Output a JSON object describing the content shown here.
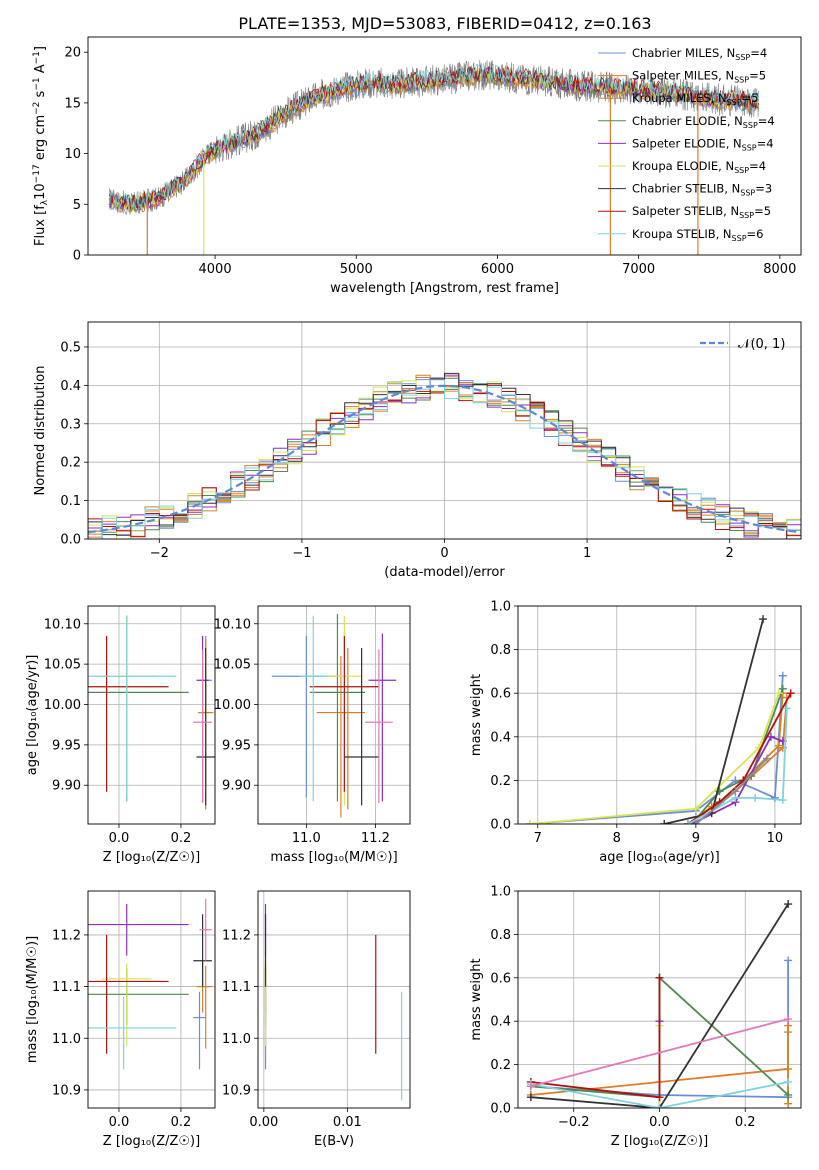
{
  "title": "PLATE=1353, MJD=53083, FIBERID=0412, z=0.163",
  "colors": {
    "chabrier_miles": "#6b8fd6",
    "salpeter_miles": "#e07b2c",
    "kroupa_miles": "#c9872a",
    "chabrier_elodie": "#4f8a4f",
    "salpeter_elodie": "#8e2fbf",
    "kroupa_elodie": "#d8e356",
    "chabrier_stelib": "#333333",
    "salpeter_stelib": "#b01010",
    "kroupa_stelib": "#7fd3de",
    "pink": "#e07ab8",
    "gray": "#8c8c8c",
    "gaussian": "#5b8bd6"
  },
  "chart_data": [
    {
      "id": "spectrum",
      "type": "line",
      "xlabel": "wavelength [Angstrom, rest frame]",
      "ylabel": "Flux [f$_\\lambda$10$^{-17}$ erg cm$^{-2}$ s$^{-1}$ A$^{-1}$]",
      "ylabel_parts": [
        "Flux [f",
        "λ",
        "10",
        "−17",
        " erg cm",
        "−2",
        " s",
        "−1",
        " A",
        "−1",
        "]"
      ],
      "xlim": [
        3100,
        8150
      ],
      "ylim": [
        0,
        21.5
      ],
      "xticks": [
        4000,
        5000,
        6000,
        7000,
        8000
      ],
      "yticks": [
        0,
        5,
        10,
        15,
        20
      ],
      "grid": false,
      "legend_position": "top-right",
      "legend": [
        {
          "label": "Chabrier MILES, N",
          "sub": "SSP",
          "val": "=4",
          "color_key": "chabrier_miles"
        },
        {
          "label": "Salpeter MILES, N",
          "sub": "SSP",
          "val": "=5",
          "color_key": "salpeter_miles"
        },
        {
          "label": "Kroupa MILES, N",
          "sub": "SSP",
          "val": "=5",
          "color_key": "kroupa_miles"
        },
        {
          "label": "Chabrier ELODIE, N",
          "sub": "SSP",
          "val": "=4",
          "color_key": "chabrier_elodie"
        },
        {
          "label": "Salpeter ELODIE, N",
          "sub": "SSP",
          "val": "=4",
          "color_key": "salpeter_elodie"
        },
        {
          "label": "Kroupa ELODIE, N",
          "sub": "SSP",
          "val": "=4",
          "color_key": "kroupa_elodie"
        },
        {
          "label": "Chabrier STELIB, N",
          "sub": "SSP",
          "val": "=3",
          "color_key": "chabrier_stelib"
        },
        {
          "label": "Salpeter STELIB, N",
          "sub": "SSP",
          "val": "=5",
          "color_key": "salpeter_stelib"
        },
        {
          "label": "Kroupa STELIB, N",
          "sub": "SSP",
          "val": "=6",
          "color_key": "kroupa_stelib"
        }
      ],
      "continuum": {
        "x": [
          3250,
          3400,
          3600,
          3800,
          3950,
          4100,
          4300,
          4500,
          4700,
          4900,
          5100,
          5300,
          5500,
          5700,
          5900,
          6100,
          6300,
          6500,
          6700,
          6900,
          7100,
          7300,
          7500,
          7700,
          7850
        ],
        "y": [
          5.5,
          5.0,
          5.6,
          7.5,
          10.0,
          11.0,
          12.0,
          14.0,
          15.5,
          16.5,
          17.0,
          16.8,
          17.2,
          17.4,
          17.8,
          17.5,
          17.2,
          16.8,
          16.6,
          16.4,
          16.2,
          15.9,
          15.4,
          15.2,
          15.0
        ]
      }
    },
    {
      "id": "residuals",
      "type": "line",
      "xlabel": "(data-model)/error",
      "ylabel": "Normed distribution",
      "xlim": [
        -2.5,
        2.5
      ],
      "ylim": [
        0,
        0.565
      ],
      "xticks": [
        -2,
        -1,
        0,
        1,
        2
      ],
      "yticks": [
        0.0,
        0.1,
        0.2,
        0.3,
        0.4,
        0.5
      ],
      "grid": true,
      "legend_position": "top-right",
      "legend": [
        {
          "label": "𝒩(0, 1)",
          "color_key": "gaussian",
          "style": "dashed"
        }
      ],
      "bin_width": 0.1
    },
    {
      "id": "age_vs_Z",
      "type": "scatter",
      "xlabel": "Z [log₁₀(Z/Z☉)]",
      "ylabel": "age  [log₁₀(age/yr)]",
      "xlim": [
        -0.1,
        0.31
      ],
      "ylim": [
        9.852,
        10.122
      ],
      "xticks": [
        0.0,
        0.2
      ],
      "yticks": [
        9.9,
        9.95,
        10.0,
        10.05,
        10.1
      ],
      "grid": true,
      "points": [
        {
          "x": 0.28,
          "xerr": 0.02,
          "y": 10.03,
          "yerr_lo": 0.15,
          "yerr_hi": 0.055,
          "color_key": "chabrier_miles"
        },
        {
          "x": 0.28,
          "xerr": 0.025,
          "y": 9.99,
          "yerr_lo": 0.1,
          "yerr_hi": 0.09,
          "color_key": "salpeter_miles"
        },
        {
          "x": 0.28,
          "xerr": 0.02,
          "y": 9.99,
          "yerr_lo": 0.12,
          "yerr_hi": 0.08,
          "color_key": "kroupa_miles"
        },
        {
          "x": 0.025,
          "xerr": 0.2,
          "y": 10.015,
          "yerr_lo": 0.135,
          "yerr_hi": 0.095,
          "color_key": "chabrier_elodie"
        },
        {
          "x": 0.27,
          "xerr": 0.02,
          "y": 10.03,
          "yerr_lo": 0.15,
          "yerr_hi": 0.055,
          "color_key": "salpeter_elodie"
        },
        {
          "x": 0.025,
          "xerr": 0.1,
          "y": 10.035,
          "yerr_lo": 0.15,
          "yerr_hi": 0.075,
          "color_key": "kroupa_elodie"
        },
        {
          "x": 0.28,
          "xerr": 0.03,
          "y": 9.935,
          "yerr_lo": 0.06,
          "yerr_hi": 0.135,
          "color_key": "chabrier_stelib"
        },
        {
          "x": -0.04,
          "xerr": 0.2,
          "y": 10.022,
          "yerr_lo": 0.13,
          "yerr_hi": 0.063,
          "color_key": "salpeter_stelib"
        },
        {
          "x": 0.025,
          "xerr": 0.16,
          "y": 10.035,
          "yerr_lo": 0.155,
          "yerr_hi": 0.075,
          "color_key": "kroupa_stelib"
        },
        {
          "x": 0.27,
          "xerr": 0.03,
          "y": 9.978,
          "yerr_lo": 0.1,
          "yerr_hi": 0.09,
          "color_key": "pink"
        }
      ]
    },
    {
      "id": "age_vs_mass",
      "type": "scatter",
      "xlabel": "mass [log₁₀(M/M☉)]",
      "ylabel": "",
      "xlim": [
        10.86,
        11.3
      ],
      "ylim": [
        9.852,
        10.122
      ],
      "xticks": [
        11.0,
        11.2
      ],
      "yticks": [
        9.9,
        9.95,
        10.0,
        10.05,
        10.1
      ],
      "grid": true,
      "points": [
        {
          "x": 11.0,
          "xerr": 0.1,
          "y": 10.035,
          "yerr_lo": 0.15,
          "yerr_hi": 0.05,
          "color_key": "chabrier_miles"
        },
        {
          "x": 11.1,
          "xerr": 0.07,
          "y": 9.99,
          "yerr_lo": 0.13,
          "yerr_hi": 0.07,
          "color_key": "salpeter_miles"
        },
        {
          "x": 11.12,
          "xerr": 0.03,
          "y": 9.99,
          "yerr_lo": 0.12,
          "yerr_hi": 0.08,
          "color_key": "kroupa_miles"
        },
        {
          "x": 11.09,
          "xerr": 0.08,
          "y": 10.015,
          "yerr_lo": 0.135,
          "yerr_hi": 0.097,
          "color_key": "chabrier_elodie"
        },
        {
          "x": 11.22,
          "xerr": 0.04,
          "y": 10.03,
          "yerr_lo": 0.15,
          "yerr_hi": 0.058,
          "color_key": "salpeter_elodie"
        },
        {
          "x": 11.11,
          "xerr": 0.05,
          "y": 10.035,
          "yerr_lo": 0.16,
          "yerr_hi": 0.075,
          "color_key": "kroupa_elodie"
        },
        {
          "x": 11.16,
          "xerr": 0.05,
          "y": 9.935,
          "yerr_lo": 0.06,
          "yerr_hi": 0.135,
          "color_key": "chabrier_stelib"
        },
        {
          "x": 11.11,
          "xerr": 0.1,
          "y": 10.022,
          "yerr_lo": 0.13,
          "yerr_hi": 0.063,
          "color_key": "salpeter_stelib"
        },
        {
          "x": 11.02,
          "xerr": 0.04,
          "y": 10.035,
          "yerr_lo": 0.155,
          "yerr_hi": 0.075,
          "color_key": "kroupa_stelib"
        },
        {
          "x": 11.21,
          "xerr": 0.04,
          "y": 9.978,
          "yerr_lo": 0.1,
          "yerr_hi": 0.09,
          "color_key": "pink"
        }
      ]
    },
    {
      "id": "weight_vs_age",
      "type": "line",
      "xlabel": "age  [log₁₀(age/yr)]",
      "ylabel": "mass weight",
      "xlim": [
        6.75,
        10.33
      ],
      "ylim": [
        0,
        1.0
      ],
      "xticks": [
        7,
        8,
        9,
        10
      ],
      "yticks": [
        0.0,
        0.2,
        0.4,
        0.6,
        0.8,
        1.0
      ],
      "grid": true,
      "series": [
        {
          "color_key": "chabrier_miles",
          "x": [
            6.9,
            9.0,
            9.5,
            10.0,
            10.1
          ],
          "y": [
            0.0,
            0.06,
            0.2,
            0.12,
            0.68
          ]
        },
        {
          "color_key": "salpeter_miles",
          "x": [
            8.9,
            9.2,
            9.5,
            10.1,
            10.15
          ],
          "y": [
            0.0,
            0.08,
            0.15,
            0.35,
            0.58
          ]
        },
        {
          "color_key": "kroupa_miles",
          "x": [
            8.9,
            9.3,
            9.6,
            10.05,
            10.1
          ],
          "y": [
            0.0,
            0.1,
            0.2,
            0.36,
            0.6
          ]
        },
        {
          "color_key": "chabrier_elodie",
          "x": [
            8.95,
            9.3,
            9.7,
            10.1
          ],
          "y": [
            0.0,
            0.15,
            0.22,
            0.62
          ]
        },
        {
          "color_key": "salpeter_elodie",
          "x": [
            8.95,
            9.5,
            9.95,
            10.1
          ],
          "y": [
            0.0,
            0.1,
            0.4,
            0.38
          ]
        },
        {
          "color_key": "kroupa_elodie",
          "x": [
            6.9,
            9.0,
            9.8,
            10.05
          ],
          "y": [
            0.0,
            0.07,
            0.35,
            0.6
          ]
        },
        {
          "color_key": "chabrier_stelib",
          "x": [
            8.6,
            9.2,
            9.85
          ],
          "y": [
            0.0,
            0.05,
            0.94
          ]
        },
        {
          "color_key": "salpeter_stelib",
          "x": [
            8.9,
            9.3,
            9.6,
            10.2
          ],
          "y": [
            0.0,
            0.1,
            0.2,
            0.6
          ]
        },
        {
          "color_key": "kroupa_stelib",
          "x": [
            8.9,
            9.5,
            9.75,
            10.1,
            10.15
          ],
          "y": [
            0.0,
            0.12,
            0.12,
            0.11,
            0.53
          ]
        },
        {
          "color_key": "gray",
          "x": [
            9.0,
            9.5,
            9.9
          ],
          "y": [
            0.0,
            0.15,
            0.3
          ]
        }
      ]
    },
    {
      "id": "mass_vs_Z",
      "type": "scatter",
      "xlabel": "Z [log₁₀(Z/Z☉)]",
      "ylabel": "mass [log₁₀(M/M☉)]",
      "xlim": [
        -0.1,
        0.31
      ],
      "ylim": [
        10.865,
        11.285
      ],
      "xticks": [
        0.0,
        0.2
      ],
      "yticks": [
        10.9,
        11.0,
        11.1,
        11.2
      ],
      "grid": true,
      "points": [
        {
          "x": 0.26,
          "xerr": 0.02,
          "y": 11.04,
          "yerr_lo": 0.1,
          "yerr_hi": 0.05,
          "color_key": "chabrier_miles"
        },
        {
          "x": 0.28,
          "xerr": 0.02,
          "y": 11.1,
          "yerr_lo": 0.12,
          "yerr_hi": 0.04,
          "color_key": "salpeter_miles"
        },
        {
          "x": 0.27,
          "xerr": 0.02,
          "y": 11.1,
          "yerr_lo": 0.05,
          "yerr_hi": 0.05,
          "color_key": "kroupa_miles"
        },
        {
          "x": 0.025,
          "xerr": 0.2,
          "y": 11.085,
          "yerr_lo": 0.06,
          "yerr_hi": 0.05,
          "color_key": "chabrier_elodie"
        },
        {
          "x": 0.025,
          "xerr": 0.2,
          "y": 11.22,
          "yerr_lo": 0.06,
          "yerr_hi": 0.04,
          "color_key": "salpeter_elodie"
        },
        {
          "x": 0.025,
          "xerr": 0.08,
          "y": 11.115,
          "yerr_lo": 0.13,
          "yerr_hi": 0.03,
          "color_key": "kroupa_elodie"
        },
        {
          "x": 0.27,
          "xerr": 0.03,
          "y": 11.15,
          "yerr_lo": 0.05,
          "yerr_hi": 0.09,
          "color_key": "chabrier_stelib"
        },
        {
          "x": -0.04,
          "xerr": 0.2,
          "y": 11.11,
          "yerr_lo": 0.14,
          "yerr_hi": 0.09,
          "color_key": "salpeter_stelib"
        },
        {
          "x": 0.015,
          "xerr": 0.17,
          "y": 11.02,
          "yerr_lo": 0.08,
          "yerr_hi": 0.06,
          "color_key": "kroupa_stelib"
        },
        {
          "x": 0.28,
          "xerr": 0.02,
          "y": 11.21,
          "yerr_lo": 0.06,
          "yerr_hi": 0.06,
          "color_key": "pink"
        }
      ]
    },
    {
      "id": "mass_vs_ebv",
      "type": "scatter",
      "xlabel": "E(B-V)",
      "ylabel": "",
      "xlim": [
        -0.0007,
        0.0175
      ],
      "ylim": [
        10.865,
        11.285
      ],
      "xticks": [
        0.0,
        0.01
      ],
      "yticks": [
        10.9,
        11.0,
        11.1,
        11.2
      ],
      "grid": true,
      "points": [
        {
          "x": 0.0002,
          "y": 11.04,
          "yerr_lo": 0.1,
          "yerr_hi": 0.05,
          "color_key": "chabrier_miles"
        },
        {
          "x": 0.0002,
          "y": 11.1,
          "yerr_lo": 0.12,
          "yerr_hi": 0.04,
          "color_key": "salpeter_miles"
        },
        {
          "x": 0.0002,
          "y": 11.1,
          "yerr_lo": 0.05,
          "yerr_hi": 0.05,
          "color_key": "kroupa_miles"
        },
        {
          "x": 0.0002,
          "y": 11.085,
          "yerr_lo": 0.06,
          "yerr_hi": 0.05,
          "color_key": "chabrier_elodie"
        },
        {
          "x": 0.0002,
          "y": 11.22,
          "yerr_lo": 0.06,
          "yerr_hi": 0.04,
          "color_key": "salpeter_elodie"
        },
        {
          "x": 0.0002,
          "y": 11.115,
          "yerr_lo": 0.13,
          "yerr_hi": 0.03,
          "color_key": "kroupa_elodie"
        },
        {
          "x": 0.0002,
          "y": 11.15,
          "yerr_lo": 0.05,
          "yerr_hi": 0.09,
          "color_key": "chabrier_stelib"
        },
        {
          "x": 0.0134,
          "y": 11.11,
          "yerr_lo": 0.14,
          "yerr_hi": 0.09,
          "color_key": "salpeter_stelib"
        },
        {
          "x": 0.0165,
          "y": 10.99,
          "yerr_lo": 0.11,
          "yerr_hi": 0.1,
          "color_key": "kroupa_stelib"
        }
      ]
    },
    {
      "id": "weight_vs_Z",
      "type": "line",
      "xlabel": "Z [log₁₀(Z/Z☉)]",
      "ylabel": "mass weight",
      "xlim": [
        -0.33,
        0.33
      ],
      "ylim": [
        0,
        1.0
      ],
      "xticks": [
        -0.2,
        0.0,
        0.2
      ],
      "yticks": [
        0.0,
        0.2,
        0.4,
        0.6,
        0.8,
        1.0
      ],
      "grid": true,
      "series": [
        {
          "color_key": "chabrier_miles",
          "x": [
            -0.3,
            0.0,
            0.3,
            0.3
          ],
          "y": [
            0.1,
            0.06,
            0.05,
            0.68
          ]
        },
        {
          "color_key": "salpeter_miles",
          "x": [
            -0.3,
            0.0,
            0.3,
            0.3
          ],
          "y": [
            0.06,
            0.12,
            0.18,
            0.38
          ]
        },
        {
          "color_key": "kroupa_miles",
          "x": [
            0.3,
            0.3
          ],
          "y": [
            0.02,
            0.35
          ]
        },
        {
          "color_key": "chabrier_elodie",
          "x": [
            -0.3,
            0.0,
            0.0,
            0.3
          ],
          "y": [
            0.1,
            0.05,
            0.6,
            0.06
          ]
        },
        {
          "color_key": "salpeter_elodie",
          "x": [
            0.0,
            0.0
          ],
          "y": [
            0.0,
            0.4
          ]
        },
        {
          "color_key": "kroupa_elodie",
          "x": [
            0.0,
            0.0
          ],
          "y": [
            0.0,
            0.38
          ]
        },
        {
          "color_key": "chabrier_stelib",
          "x": [
            -0.3,
            0.0,
            0.3
          ],
          "y": [
            0.05,
            0.0,
            0.94
          ]
        },
        {
          "color_key": "salpeter_stelib",
          "x": [
            -0.3,
            0.0,
            0.0
          ],
          "y": [
            0.12,
            0.05,
            0.6
          ]
        },
        {
          "color_key": "kroupa_stelib",
          "x": [
            -0.3,
            0.0,
            0.3
          ],
          "y": [
            0.11,
            0.0,
            0.12
          ]
        },
        {
          "color_key": "pink",
          "x": [
            -0.3,
            0.3
          ],
          "y": [
            0.1,
            0.41
          ]
        }
      ]
    }
  ]
}
